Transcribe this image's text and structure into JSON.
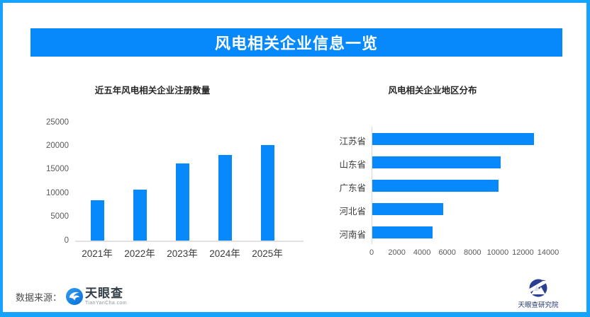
{
  "header": {
    "title": "风电相关企业信息一览"
  },
  "chart_data": [
    {
      "type": "bar",
      "orientation": "vertical",
      "title": "近五年风电相关企业注册数量",
      "categories": [
        "2021年",
        "2022年",
        "2023年",
        "2024年",
        "2025年"
      ],
      "values": [
        8600,
        10800,
        16300,
        18100,
        20200
      ],
      "xlabel": "",
      "ylabel": "",
      "ylim": [
        0,
        25000
      ],
      "yticks": [
        0,
        5000,
        10000,
        15000,
        20000,
        25000
      ],
      "grid": false,
      "legend": false
    },
    {
      "type": "bar",
      "orientation": "horizontal",
      "title": "风电相关企业地区分布",
      "categories": [
        "江苏省",
        "山东省",
        "广东省",
        "河北省",
        "河南省"
      ],
      "values": [
        12800,
        10200,
        10000,
        5600,
        4800
      ],
      "xlabel": "",
      "ylabel": "",
      "xlim": [
        0,
        14000
      ],
      "xticks": [
        0,
        2000,
        4000,
        6000,
        8000,
        10000,
        12000,
        14000
      ],
      "grid": false,
      "legend": false
    }
  ],
  "footer": {
    "source_label": "数据来源：",
    "logo_text": "天眼查",
    "logo_subtext": "TianYanCha.com",
    "institute_label": "天眼查研究院"
  },
  "colors": {
    "accent": "#0789fb",
    "border": "#16a3fd",
    "axis_line": "#e2e2e2",
    "tick_text": "#5a5a5a",
    "category_text": "#3c3c3c",
    "navy": "#2b3f92"
  }
}
